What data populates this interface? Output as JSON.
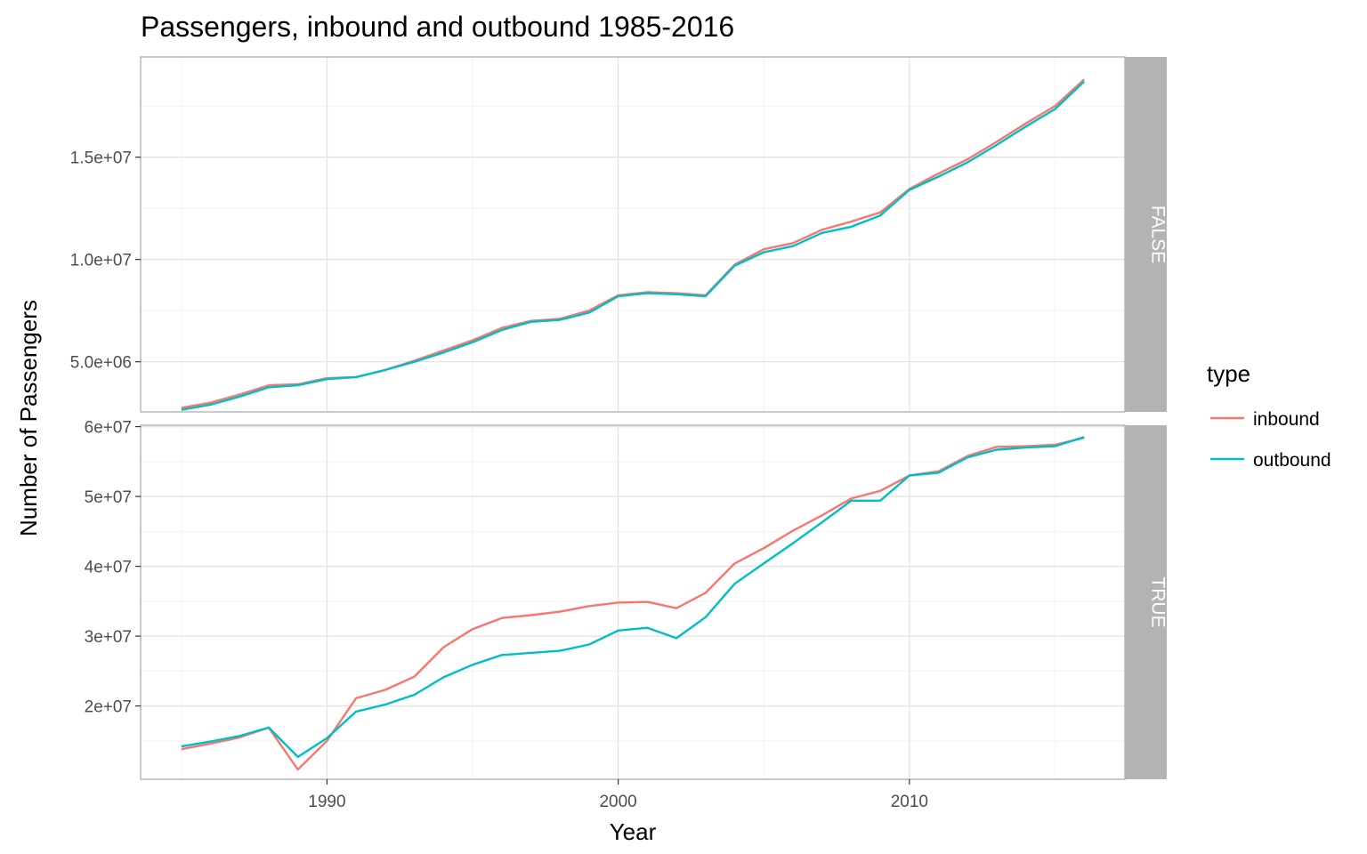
{
  "chart_data": {
    "type": "line",
    "title": "Passengers, inbound and outbound 1985-2016",
    "xlabel": "Year",
    "ylabel": "Number of Passengers",
    "x_ticks": [
      1990,
      2000,
      2010
    ],
    "legend": {
      "title": "type",
      "placement": "right",
      "entries": [
        {
          "name": "inbound",
          "color": "#F8766D"
        },
        {
          "name": "outbound",
          "color": "#00BFC4"
        }
      ]
    },
    "grid": true,
    "facets": [
      {
        "strip": "FALSE",
        "xlim": [
          1983.6,
          2017.4
        ],
        "ylim": [
          2550000,
          19900000
        ],
        "y_ticks": [
          {
            "value": 5000000,
            "label": "5.0e+06"
          },
          {
            "value": 10000000,
            "label": "1.0e+07"
          },
          {
            "value": 15000000,
            "label": "1.5e+07"
          }
        ],
        "x": [
          1985,
          1986,
          1987,
          1988,
          1989,
          1990,
          1991,
          1992,
          1993,
          1994,
          1995,
          1996,
          1997,
          1998,
          1999,
          2000,
          2001,
          2002,
          2003,
          2004,
          2005,
          2006,
          2007,
          2008,
          2009,
          2010,
          2011,
          2012,
          2013,
          2014,
          2015,
          2016
        ],
        "series": [
          {
            "name": "inbound",
            "color": "#F8766D",
            "values": [
              2750000,
              3000000,
              3400000,
              3850000,
              3900000,
              4200000,
              4250000,
              4600000,
              5050000,
              5550000,
              6050000,
              6650000,
              7000000,
              7100000,
              7500000,
              8250000,
              8400000,
              8350000,
              8250000,
              9750000,
              10500000,
              10800000,
              11450000,
              11850000,
              12300000,
              13450000,
              14200000,
              14900000,
              15750000,
              16650000,
              17500000,
              18800000
            ]
          },
          {
            "name": "outbound",
            "color": "#00BFC4",
            "values": [
              2650000,
              2900000,
              3300000,
              3750000,
              3850000,
              4150000,
              4250000,
              4600000,
              5000000,
              5450000,
              5950000,
              6550000,
              6950000,
              7050000,
              7400000,
              8200000,
              8350000,
              8300000,
              8200000,
              9700000,
              10350000,
              10650000,
              11300000,
              11600000,
              12150000,
              13400000,
              14050000,
              14750000,
              15600000,
              16500000,
              17350000,
              18700000
            ]
          }
        ]
      },
      {
        "strip": "TRUE",
        "xlim": [
          1983.6,
          2017.4
        ],
        "ylim": [
          9500000,
          60200000
        ],
        "y_ticks": [
          {
            "value": 20000000,
            "label": "2e+07"
          },
          {
            "value": 30000000,
            "label": "3e+07"
          },
          {
            "value": 40000000,
            "label": "4e+07"
          },
          {
            "value": 50000000,
            "label": "5e+07"
          },
          {
            "value": 60000000,
            "label": "6e+07"
          }
        ],
        "x": [
          1985,
          1986,
          1987,
          1988,
          1989,
          1990,
          1991,
          1992,
          1993,
          1994,
          1995,
          1996,
          1997,
          1998,
          1999,
          2000,
          2001,
          2002,
          2003,
          2004,
          2005,
          2006,
          2007,
          2008,
          2009,
          2010,
          2011,
          2012,
          2013,
          2014,
          2015,
          2016
        ],
        "series": [
          {
            "name": "inbound",
            "color": "#F8766D",
            "values": [
              13800000,
              14600000,
              15500000,
              16900000,
              10900000,
              15000000,
              21100000,
              22300000,
              24200000,
              28400000,
              31000000,
              32600000,
              33000000,
              33500000,
              34300000,
              34800000,
              34900000,
              34000000,
              36200000,
              40400000,
              42600000,
              45100000,
              47300000,
              49700000,
              50800000,
              53000000,
              53600000,
              55800000,
              57100000,
              57200000,
              57400000,
              58400000
            ]
          },
          {
            "name": "outbound",
            "color": "#00BFC4",
            "values": [
              14200000,
              14900000,
              15700000,
              16900000,
              12700000,
              15400000,
              19200000,
              20200000,
              21600000,
              24100000,
              25900000,
              27300000,
              27600000,
              27900000,
              28800000,
              30800000,
              31200000,
              29700000,
              32700000,
              37500000,
              40400000,
              43300000,
              46300000,
              49400000,
              49400000,
              53000000,
              53400000,
              55600000,
              56700000,
              57000000,
              57200000,
              58500000
            ]
          }
        ]
      }
    ]
  }
}
